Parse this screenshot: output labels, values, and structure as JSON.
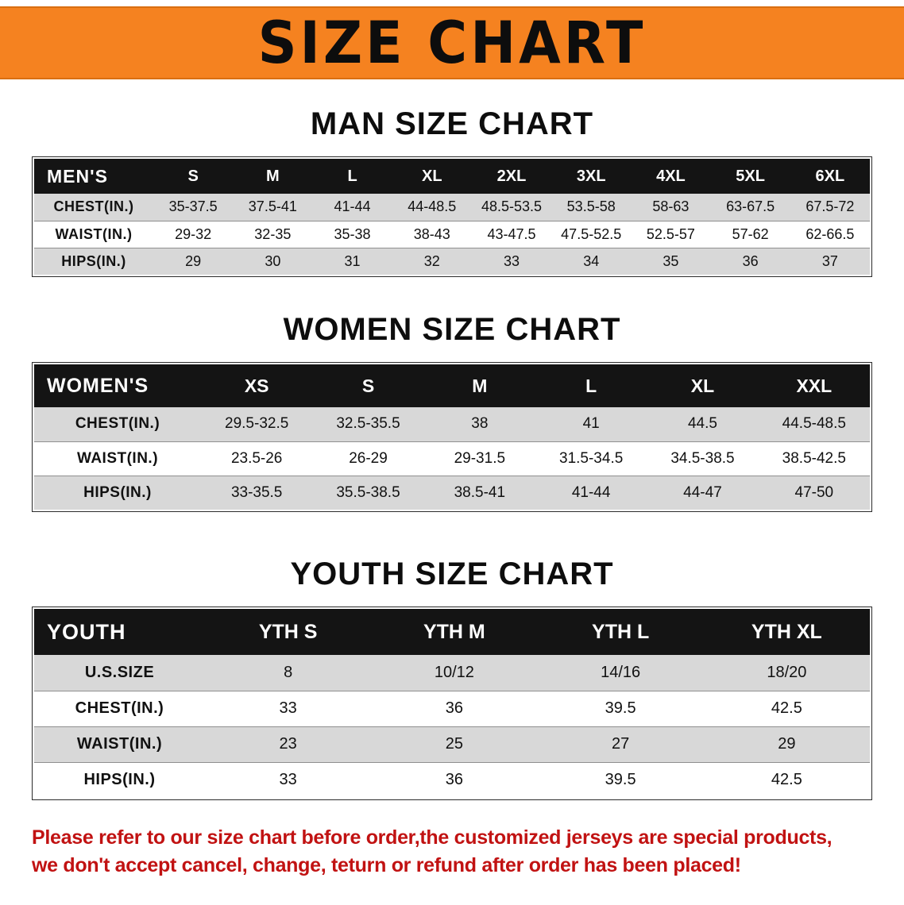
{
  "banner": {
    "title": "SIZE CHART"
  },
  "sections": [
    {
      "id": "men",
      "heading": "MAN SIZE CHART",
      "table": {
        "header": [
          "MEN'S",
          "S",
          "M",
          "L",
          "XL",
          "2XL",
          "3XL",
          "4XL",
          "5XL",
          "6XL"
        ],
        "rows": [
          [
            "CHEST(IN.)",
            "35-37.5",
            "37.5-41",
            "41-44",
            "44-48.5",
            "48.5-53.5",
            "53.5-58",
            "58-63",
            "63-67.5",
            "67.5-72"
          ],
          [
            "WAIST(IN.)",
            "29-32",
            "32-35",
            "35-38",
            "38-43",
            "43-47.5",
            "47.5-52.5",
            "52.5-57",
            "57-62",
            "62-66.5"
          ],
          [
            "HIPS(IN.)",
            "29",
            "30",
            "31",
            "32",
            "33",
            "34",
            "35",
            "36",
            "37"
          ]
        ]
      }
    },
    {
      "id": "women",
      "heading": "WOMEN SIZE CHART",
      "table": {
        "header": [
          "WOMEN'S",
          "XS",
          "S",
          "M",
          "L",
          "XL",
          "XXL"
        ],
        "rows": [
          [
            "CHEST(IN.)",
            "29.5-32.5",
            "32.5-35.5",
            "38",
            "41",
            "44.5",
            "44.5-48.5"
          ],
          [
            "WAIST(IN.)",
            "23.5-26",
            "26-29",
            "29-31.5",
            "31.5-34.5",
            "34.5-38.5",
            "38.5-42.5"
          ],
          [
            "HIPS(IN.)",
            "33-35.5",
            "35.5-38.5",
            "38.5-41",
            "41-44",
            "44-47",
            "47-50"
          ]
        ]
      }
    },
    {
      "id": "youth",
      "heading": "YOUTH SIZE CHART",
      "table": {
        "header": [
          "YOUTH",
          "YTH S",
          "YTH M",
          "YTH L",
          "YTH XL"
        ],
        "rows": [
          [
            "U.S.SIZE",
            "8",
            "10/12",
            "14/16",
            "18/20"
          ],
          [
            "CHEST(IN.)",
            "33",
            "36",
            "39.5",
            "42.5"
          ],
          [
            "WAIST(IN.)",
            "23",
            "25",
            "27",
            "29"
          ],
          [
            "HIPS(IN.)",
            "33",
            "36",
            "39.5",
            "42.5"
          ]
        ]
      }
    }
  ],
  "disclaimer": {
    "lines": [
      "Please refer to our size chart before order,the customized jerseys are special products,",
      "we don't accept cancel, change, teturn or refund after order has been placed!"
    ]
  },
  "colors": {
    "banner_bg": "#f58220",
    "table_header_bg": "#141414",
    "row_stripe": "#d8d8d8",
    "disclaimer_text": "#c11212"
  }
}
